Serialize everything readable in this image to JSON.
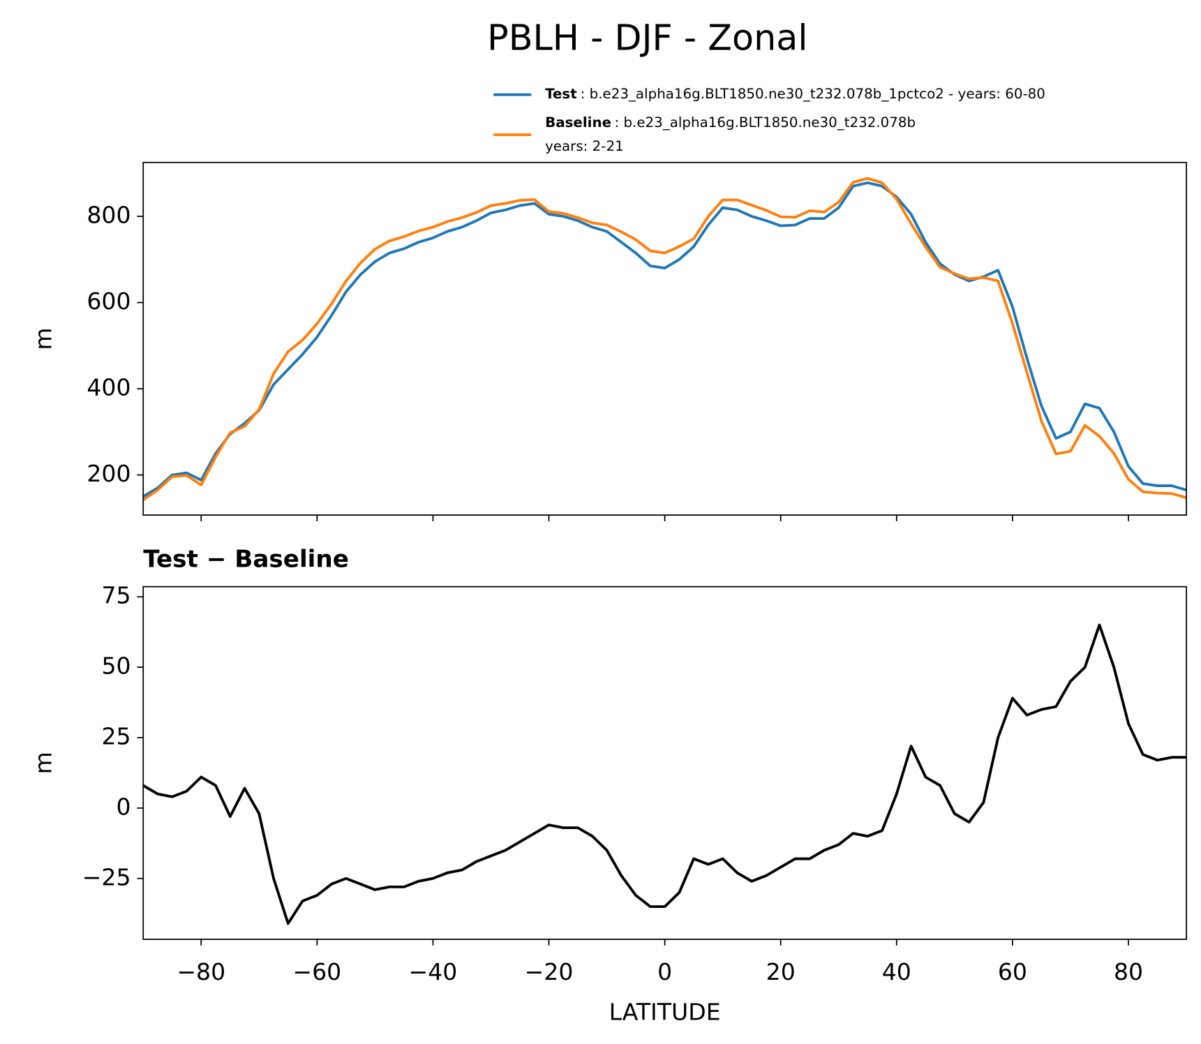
{
  "title": "PBLH - DJF - Zonal",
  "chart_data": [
    {
      "type": "line",
      "ylabel": "m",
      "legend": "above",
      "xticklabels": false,
      "x": [
        -90,
        -87.5,
        -85,
        -82.5,
        -80,
        -77.5,
        -75,
        -72.5,
        -70,
        -67.5,
        -65,
        -62.5,
        -60,
        -57.5,
        -55,
        -52.5,
        -50,
        -47.5,
        -45,
        -42.5,
        -40,
        -37.5,
        -35,
        -32.5,
        -30,
        -27.5,
        -25,
        -22.5,
        -20,
        -17.5,
        -15,
        -12.5,
        -10,
        -7.5,
        -5,
        -2.5,
        0,
        2.5,
        5,
        7.5,
        10,
        12.5,
        15,
        17.5,
        20,
        22.5,
        25,
        27.5,
        30,
        32.5,
        35,
        37.5,
        40,
        42.5,
        45,
        47.5,
        50,
        52.5,
        55,
        57.5,
        60,
        62.5,
        65,
        67.5,
        70,
        72.5,
        75,
        77.5,
        80,
        82.5,
        85,
        87.5,
        90
      ],
      "series": [
        {
          "name": "Test",
          "description": ": b.e23_alpha16g.BLT1850.ne30_t232.078b_1pctco2 - years: 60-80",
          "color": "#1f77b4",
          "values": [
            150,
            170,
            200,
            205,
            188,
            250,
            295,
            320,
            350,
            410,
            445,
            480,
            520,
            570,
            625,
            665,
            695,
            715,
            725,
            740,
            750,
            765,
            775,
            790,
            808,
            815,
            825,
            830,
            805,
            800,
            790,
            775,
            765,
            740,
            715,
            685,
            680,
            700,
            730,
            780,
            820,
            815,
            800,
            790,
            778,
            780,
            795,
            795,
            820,
            870,
            878,
            870,
            845,
            805,
            740,
            690,
            665,
            650,
            660,
            675,
            590,
            470,
            360,
            285,
            300,
            365,
            355,
            300,
            220,
            180,
            175,
            175,
            165
          ]
        },
        {
          "name": "Baseline",
          "description": [
            ": b.e23_alpha16g.BLT1850.ne30_t232.078b",
            "years: 2-21"
          ],
          "color": "#ff7f0e",
          "values": [
            142,
            165,
            196,
            199,
            177,
            242,
            298,
            313,
            352,
            435,
            486,
            513,
            551,
            597,
            650,
            692,
            724,
            743,
            753,
            766,
            775,
            788,
            797,
            809,
            825,
            830,
            837,
            839,
            811,
            807,
            797,
            785,
            780,
            764,
            746,
            720,
            715,
            730,
            748,
            800,
            838,
            838,
            826,
            814,
            799,
            798,
            813,
            810,
            833,
            879,
            888,
            878,
            840,
            783,
            729,
            682,
            667,
            655,
            658,
            650,
            551,
            437,
            325,
            249,
            255,
            315,
            290,
            250,
            190,
            161,
            158,
            157,
            147
          ]
        }
      ],
      "xlim": [
        -90,
        90
      ],
      "xticks": [
        -80,
        -60,
        -40,
        -20,
        0,
        20,
        40,
        60,
        80
      ],
      "ylim": [
        107,
        925
      ],
      "yticks": [
        200,
        400,
        600,
        800
      ]
    },
    {
      "type": "line",
      "title": "Test − Baseline",
      "xlabel": "LATITUDE",
      "ylabel": "m",
      "xticklabels": true,
      "x": [
        -90,
        -87.5,
        -85,
        -82.5,
        -80,
        -77.5,
        -75,
        -72.5,
        -70,
        -67.5,
        -65,
        -62.5,
        -60,
        -57.5,
        -55,
        -52.5,
        -50,
        -47.5,
        -45,
        -42.5,
        -40,
        -37.5,
        -35,
        -32.5,
        -30,
        -27.5,
        -25,
        -22.5,
        -20,
        -17.5,
        -15,
        -12.5,
        -10,
        -7.5,
        -5,
        -2.5,
        0,
        2.5,
        5,
        7.5,
        10,
        12.5,
        15,
        17.5,
        20,
        22.5,
        25,
        27.5,
        30,
        32.5,
        35,
        37.5,
        40,
        42.5,
        45,
        47.5,
        50,
        52.5,
        55,
        57.5,
        60,
        62.5,
        65,
        67.5,
        70,
        72.5,
        75,
        77.5,
        80,
        82.5,
        85,
        87.5,
        90
      ],
      "series": [
        {
          "color": "#000000",
          "values": [
            8,
            5,
            4,
            6,
            11,
            8,
            -3,
            7,
            -2,
            -25,
            -41,
            -33,
            -31,
            -27,
            -25,
            -27,
            -29,
            -28,
            -28,
            -26,
            -25,
            -23,
            -22,
            -19,
            -17,
            -15,
            -12,
            -9,
            -6,
            -7,
            -7,
            -10,
            -15,
            -24,
            -31,
            -35,
            -35,
            -30,
            -18,
            -20,
            -18,
            -23,
            -26,
            -24,
            -21,
            -18,
            -18,
            -15,
            -13,
            -9,
            -10,
            -8,
            5,
            22,
            11,
            8,
            -2,
            -5,
            2,
            25,
            39,
            33,
            35,
            36,
            45,
            50,
            65,
            50,
            30,
            19,
            17,
            18,
            18
          ]
        }
      ],
      "xlim": [
        -90,
        90
      ],
      "xticks": [
        {
          "value": -80,
          "label": "−80"
        },
        {
          "value": -60,
          "label": "−60"
        },
        {
          "value": -40,
          "label": "−40"
        },
        {
          "value": -20,
          "label": "−20"
        },
        0,
        20,
        40,
        60,
        80
      ],
      "ylim": [
        -46.6,
        78.6
      ],
      "yticks": [
        {
          "value": -25,
          "label": "−25"
        },
        0,
        25,
        50,
        75
      ]
    }
  ]
}
